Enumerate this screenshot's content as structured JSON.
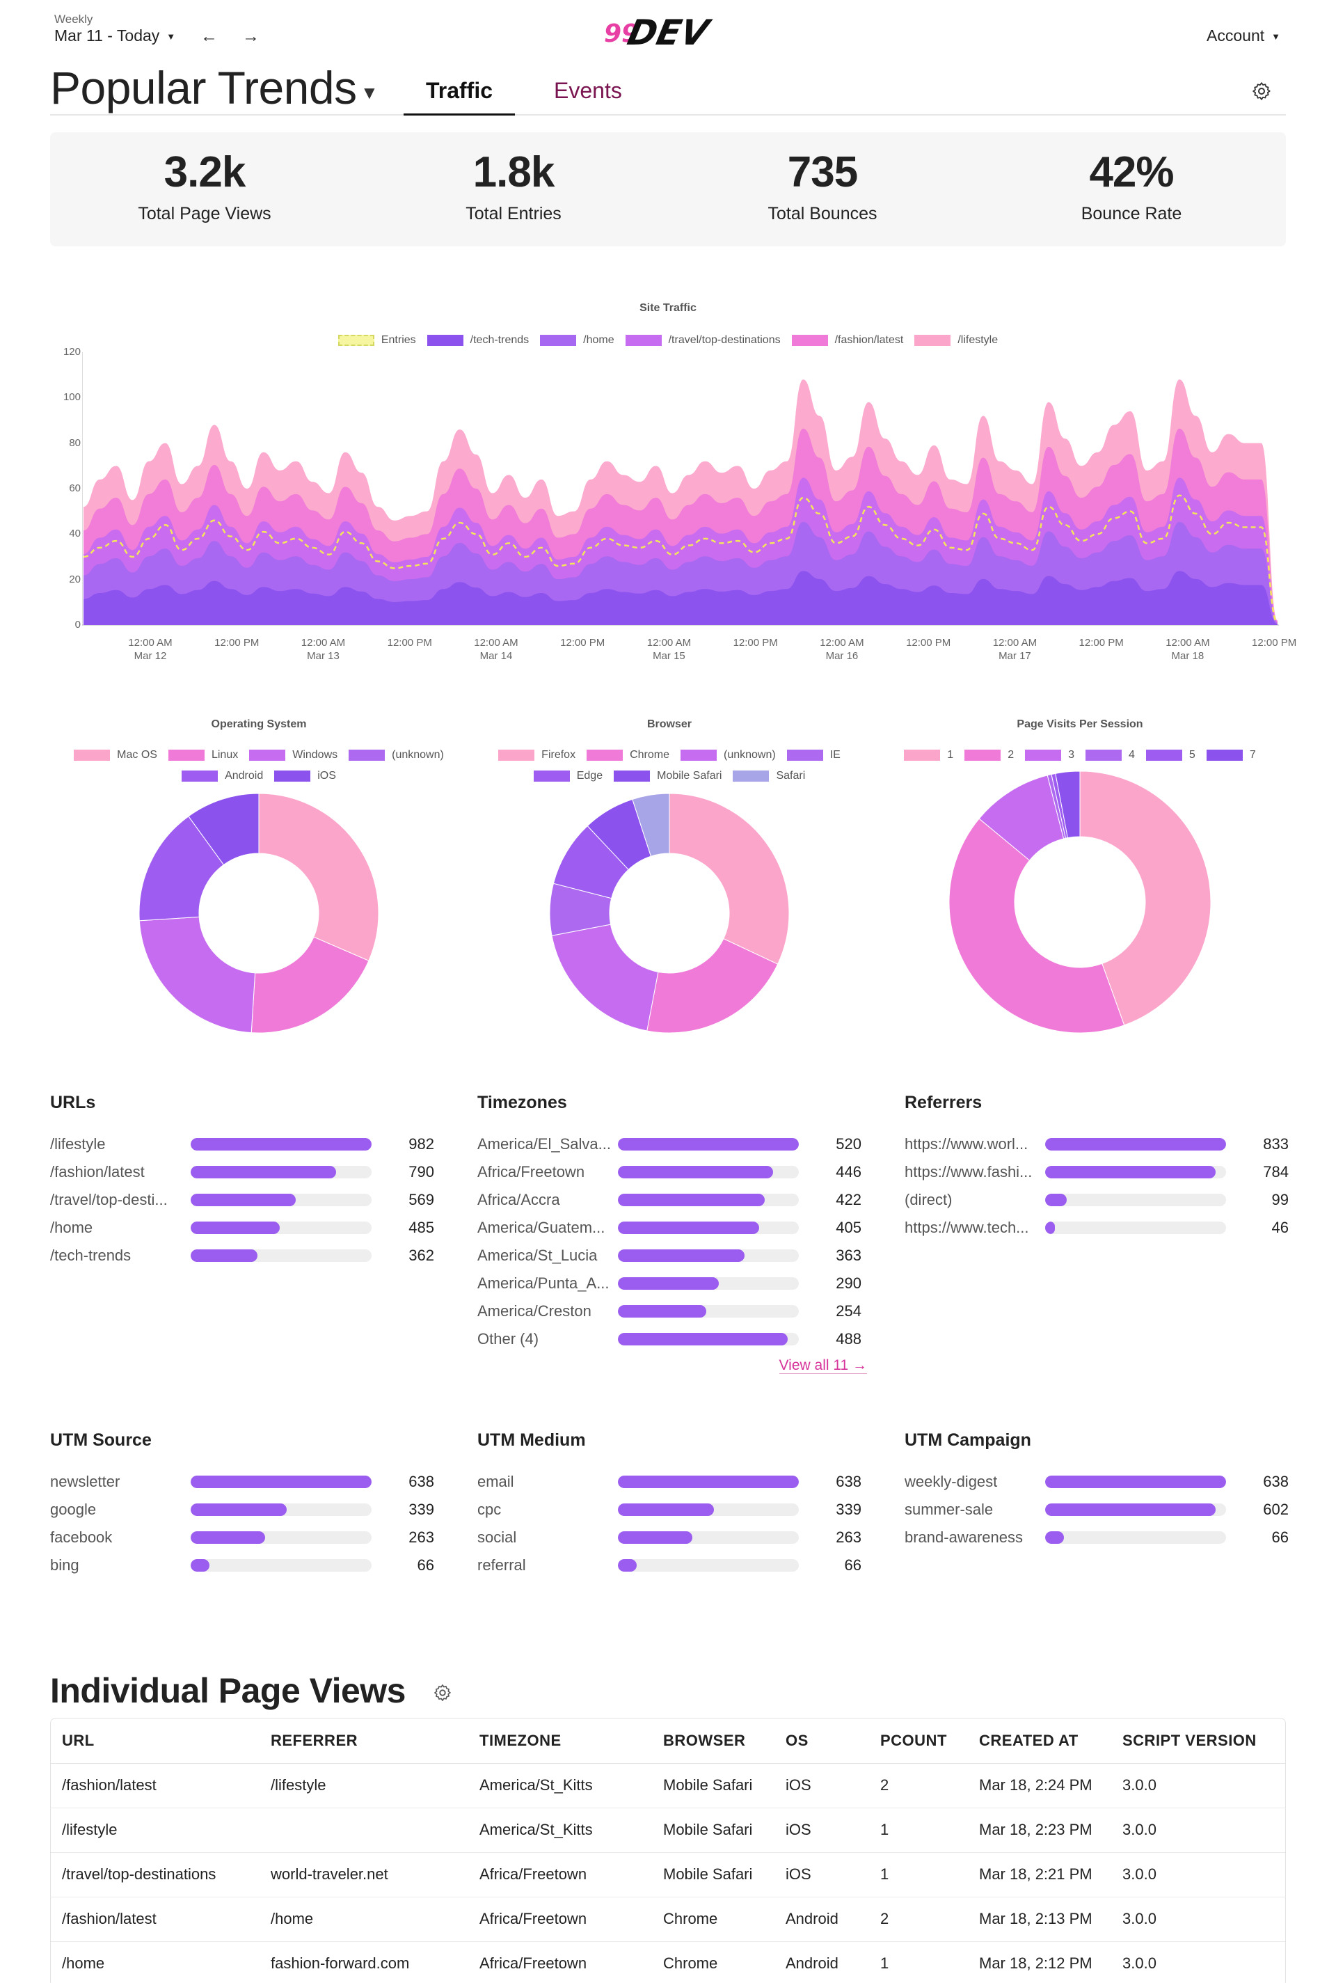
{
  "header": {
    "period_label": "Weekly",
    "period_value": "Mar 11 - Today",
    "account_label": "Account",
    "logo_text": "99DEV"
  },
  "title": {
    "text": "Popular Trends",
    "tabs": [
      {
        "label": "Traffic",
        "active": true
      },
      {
        "label": "Events",
        "active": false
      }
    ]
  },
  "stats": [
    {
      "value": "3.2k",
      "label": "Total Page Views"
    },
    {
      "value": "1.8k",
      "label": "Total Entries"
    },
    {
      "value": "735",
      "label": "Total Bounces"
    },
    {
      "value": "42%",
      "label": "Bounce Rate"
    }
  ],
  "colors": {
    "lifestyle": "#fca5cb",
    "fashion": "#f07ad8",
    "travel": "#c66cf0",
    "home": "#a668f0",
    "tech": "#8b52ee",
    "entries": "#f4e55c",
    "accent_pink": "#d6339a",
    "bar": "#9b5cf0"
  },
  "chart_data": [
    {
      "type": "area",
      "title": "Site Traffic",
      "stacked": true,
      "ylim": [
        0,
        120
      ],
      "yticks": [
        0,
        20,
        40,
        60,
        80,
        100,
        120
      ],
      "xticks": [
        {
          "time": "12:00 AM",
          "date": "Mar 12"
        },
        {
          "time": "12:00 PM",
          "date": ""
        },
        {
          "time": "12:00 AM",
          "date": "Mar 13"
        },
        {
          "time": "12:00 PM",
          "date": ""
        },
        {
          "time": "12:00 AM",
          "date": "Mar 14"
        },
        {
          "time": "12:00 PM",
          "date": ""
        },
        {
          "time": "12:00 AM",
          "date": "Mar 15"
        },
        {
          "time": "12:00 PM",
          "date": ""
        },
        {
          "time": "12:00 AM",
          "date": "Mar 16"
        },
        {
          "time": "12:00 PM",
          "date": ""
        },
        {
          "time": "12:00 AM",
          "date": "Mar 17"
        },
        {
          "time": "12:00 PM",
          "date": ""
        },
        {
          "time": "12:00 AM",
          "date": "Mar 18"
        },
        {
          "time": "12:00 PM",
          "date": ""
        }
      ],
      "totals": [
        52,
        64,
        70,
        55,
        72,
        80,
        62,
        70,
        88,
        72,
        60,
        76,
        68,
        72,
        63,
        58,
        76,
        67,
        52,
        46,
        48,
        50,
        72,
        86,
        75,
        58,
        66,
        56,
        64,
        48,
        50,
        64,
        72,
        66,
        63,
        70,
        58,
        66,
        72,
        67,
        70,
        60,
        68,
        72,
        108,
        92,
        68,
        74,
        98,
        82,
        72,
        66,
        79,
        64,
        62,
        92,
        72,
        68,
        62,
        98,
        82,
        70,
        76,
        88,
        94,
        68,
        72,
        108,
        92,
        76,
        84,
        80,
        80,
        2
      ],
      "series": [
        {
          "name": "/tech-trends",
          "frac": 0.22
        },
        {
          "name": "/home",
          "frac": 0.2
        },
        {
          "name": "/travel/top-destinations",
          "frac": 0.18
        },
        {
          "name": "/fashion/latest",
          "frac": 0.2
        },
        {
          "name": "/lifestyle",
          "frac": 0.2
        }
      ],
      "entries": [
        30,
        34,
        37,
        30,
        38,
        44,
        33,
        38,
        46,
        39,
        33,
        41,
        36,
        38,
        34,
        31,
        41,
        36,
        28,
        25,
        26,
        27,
        38,
        45,
        40,
        31,
        36,
        30,
        34,
        26,
        27,
        34,
        38,
        35,
        34,
        37,
        31,
        35,
        38,
        36,
        37,
        32,
        36,
        38,
        56,
        49,
        36,
        39,
        52,
        44,
        38,
        35,
        42,
        34,
        33,
        49,
        38,
        36,
        33,
        52,
        44,
        37,
        40,
        47,
        50,
        36,
        38,
        57,
        49,
        40,
        45,
        43,
        43,
        1
      ],
      "legend": [
        "Entries",
        "/tech-trends",
        "/home",
        "/travel/top-destinations",
        "/fashion/latest",
        "/lifestyle"
      ]
    },
    {
      "type": "pie",
      "title": "Operating System",
      "labels": [
        "Mac OS",
        "Linux",
        "Windows",
        "(unknown)",
        "Android",
        "iOS"
      ],
      "values": [
        31.5,
        19.5,
        23,
        0,
        16,
        10
      ],
      "colors": [
        "#fca5cb",
        "#f07ad8",
        "#c66cf0",
        "#ad6af0",
        "#9e5cf0",
        "#8b52ee"
      ]
    },
    {
      "type": "pie",
      "title": "Browser",
      "labels": [
        "Firefox",
        "Chrome",
        "(unknown)",
        "IE",
        "Edge",
        "Mobile Safari",
        "Safari"
      ],
      "values": [
        32,
        21,
        19,
        7,
        9,
        7,
        5
      ],
      "colors": [
        "#fca5cb",
        "#f07ad8",
        "#c66cf0",
        "#ad6af0",
        "#9e5cf0",
        "#8b52ee",
        "#a8a4e8"
      ]
    },
    {
      "type": "pie",
      "title": "Page Visits Per Session",
      "labels": [
        "1",
        "2",
        "3",
        "4",
        "5",
        "7"
      ],
      "values": [
        44.5,
        41.5,
        10,
        0.5,
        0.5,
        3
      ],
      "colors": [
        "#fca5cb",
        "#f07ad8",
        "#c66cf0",
        "#ad6af0",
        "#9e5cf0",
        "#8b52ee"
      ]
    }
  ],
  "panels": {
    "urls": {
      "title": "URLs",
      "max": 982,
      "rows": [
        {
          "label": "/lifestyle",
          "value": 982
        },
        {
          "label": "/fashion/latest",
          "value": 790
        },
        {
          "label": "/travel/top-desti...",
          "value": 569
        },
        {
          "label": "/home",
          "value": 485
        },
        {
          "label": "/tech-trends",
          "value": 362
        }
      ]
    },
    "timezones": {
      "title": "Timezones",
      "max": 520,
      "view_all": "View all 11 →",
      "rows": [
        {
          "label": "America/El_Salva...",
          "value": 520
        },
        {
          "label": "Africa/Freetown",
          "value": 446
        },
        {
          "label": "Africa/Accra",
          "value": 422
        },
        {
          "label": "America/Guatem...",
          "value": 405
        },
        {
          "label": "America/St_Lucia",
          "value": 363
        },
        {
          "label": "America/Punta_A...",
          "value": 290
        },
        {
          "label": "America/Creston",
          "value": 254
        },
        {
          "label": "Other (4)",
          "value": 488
        }
      ]
    },
    "referrers": {
      "title": "Referrers",
      "max": 833,
      "rows": [
        {
          "label": "https://www.worl...",
          "value": 833
        },
        {
          "label": "https://www.fashi...",
          "value": 784
        },
        {
          "label": "(direct)",
          "value": 99
        },
        {
          "label": "https://www.tech...",
          "value": 46
        }
      ]
    },
    "utm_source": {
      "title": "UTM Source",
      "max": 638,
      "rows": [
        {
          "label": "newsletter",
          "value": 638
        },
        {
          "label": "google",
          "value": 339
        },
        {
          "label": "facebook",
          "value": 263
        },
        {
          "label": "bing",
          "value": 66
        }
      ]
    },
    "utm_medium": {
      "title": "UTM Medium",
      "max": 638,
      "rows": [
        {
          "label": "email",
          "value": 638
        },
        {
          "label": "cpc",
          "value": 339
        },
        {
          "label": "social",
          "value": 263
        },
        {
          "label": "referral",
          "value": 66
        }
      ]
    },
    "utm_campaign": {
      "title": "UTM Campaign",
      "max": 638,
      "rows": [
        {
          "label": "weekly-digest",
          "value": 638
        },
        {
          "label": "summer-sale",
          "value": 602
        },
        {
          "label": "brand-awareness",
          "value": 66
        }
      ]
    }
  },
  "page_views": {
    "title": "Individual Page Views",
    "columns": [
      "URL",
      "REFERRER",
      "TIMEZONE",
      "BROWSER",
      "OS",
      "PCOUNT",
      "CREATED AT",
      "SCRIPT VERSION"
    ],
    "rows": [
      [
        "/fashion/latest",
        "/lifestyle",
        "America/St_Kitts",
        "Mobile Safari",
        "iOS",
        "2",
        "Mar 18, 2:24 PM",
        "3.0.0"
      ],
      [
        "/lifestyle",
        "",
        "America/St_Kitts",
        "Mobile Safari",
        "iOS",
        "1",
        "Mar 18, 2:23 PM",
        "3.0.0"
      ],
      [
        "/travel/top-destinations",
        "world-traveler.net",
        "Africa/Freetown",
        "Mobile Safari",
        "iOS",
        "1",
        "Mar 18, 2:21 PM",
        "3.0.0"
      ],
      [
        "/fashion/latest",
        "/home",
        "Africa/Freetown",
        "Chrome",
        "Android",
        "2",
        "Mar 18, 2:13 PM",
        "3.0.0"
      ],
      [
        "/home",
        "fashion-forward.com",
        "Africa/Freetown",
        "Chrome",
        "Android",
        "1",
        "Mar 18, 2:12 PM",
        "3.0.0"
      ]
    ]
  }
}
